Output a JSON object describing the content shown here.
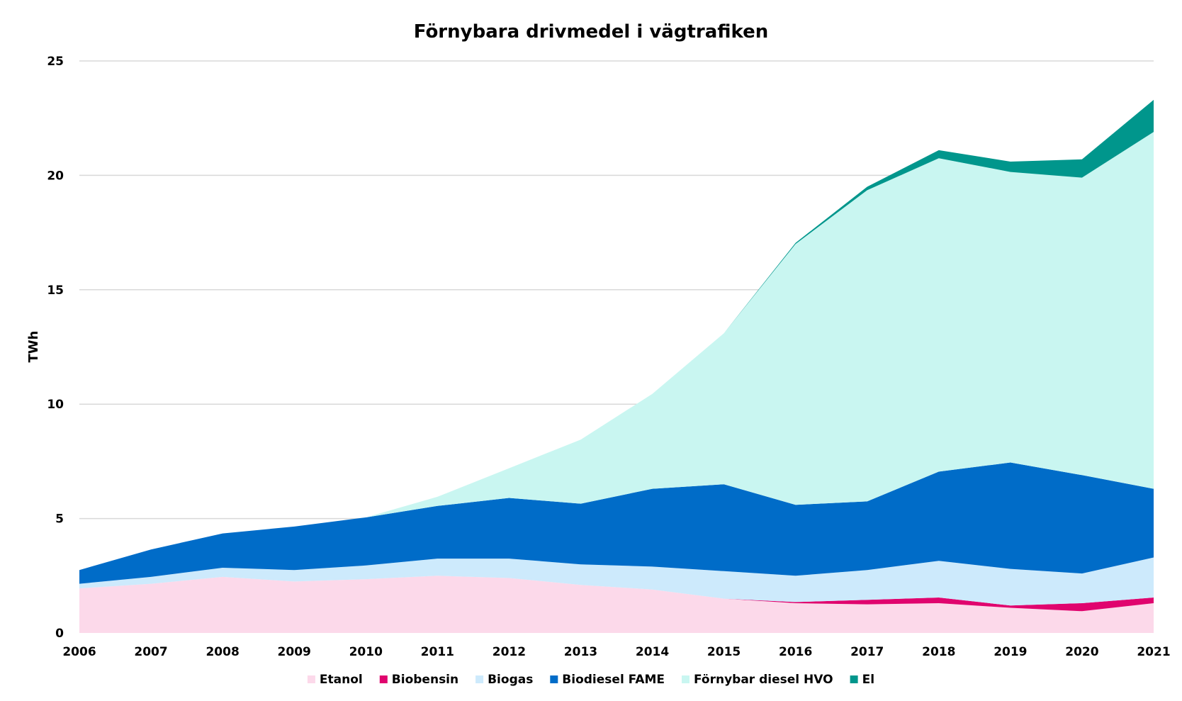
{
  "chart_data": {
    "type": "area",
    "stacked": true,
    "title": "Förnybara drivmedel i vägtrafiken",
    "xlabel": "",
    "ylabel": "TWh",
    "x": [
      "2006",
      "2007",
      "2008",
      "2009",
      "2010",
      "2011",
      "2012",
      "2013",
      "2014",
      "2015",
      "2016",
      "2017",
      "2018",
      "2019",
      "2020",
      "2021"
    ],
    "ylim": [
      0,
      25
    ],
    "yticks": [
      "0",
      "5",
      "10",
      "15",
      "20",
      "25"
    ],
    "grid": true,
    "legend_position": "bottom",
    "series": [
      {
        "name": "Etanol",
        "color": "#fcd9ea",
        "values": [
          1.95,
          2.15,
          2.45,
          2.25,
          2.35,
          2.5,
          2.4,
          2.1,
          1.9,
          1.5,
          1.3,
          1.25,
          1.3,
          1.1,
          0.95,
          1.3
        ]
      },
      {
        "name": "Biobensin",
        "color": "#e0046e",
        "values": [
          0,
          0,
          0,
          0,
          0,
          0,
          0,
          0,
          0,
          0,
          0.05,
          0.2,
          0.25,
          0.1,
          0.35,
          0.25
        ]
      },
      {
        "name": "Biogas",
        "color": "#cdeafc",
        "values": [
          0.2,
          0.3,
          0.4,
          0.5,
          0.6,
          0.75,
          0.85,
          0.9,
          1.0,
          1.2,
          1.15,
          1.3,
          1.6,
          1.6,
          1.3,
          1.75
        ]
      },
      {
        "name": "Biodiesel FAME",
        "color": "#006cc8",
        "values": [
          0.6,
          1.2,
          1.5,
          1.9,
          2.1,
          2.3,
          2.65,
          2.65,
          3.4,
          3.8,
          3.1,
          3.0,
          3.9,
          4.65,
          4.3,
          3.0
        ]
      },
      {
        "name": "Förnybar diesel HVO",
        "color": "#c9f6f1",
        "values": [
          0,
          0,
          0,
          0,
          0,
          0.4,
          1.3,
          2.8,
          4.15,
          6.6,
          11.4,
          13.6,
          13.7,
          12.7,
          13.0,
          15.6
        ]
      },
      {
        "name": "El",
        "color": "#00968c",
        "values": [
          0,
          0,
          0,
          0,
          0,
          0,
          0,
          0,
          0,
          0,
          0.05,
          0.15,
          0.35,
          0.45,
          0.8,
          1.4
        ]
      }
    ]
  }
}
